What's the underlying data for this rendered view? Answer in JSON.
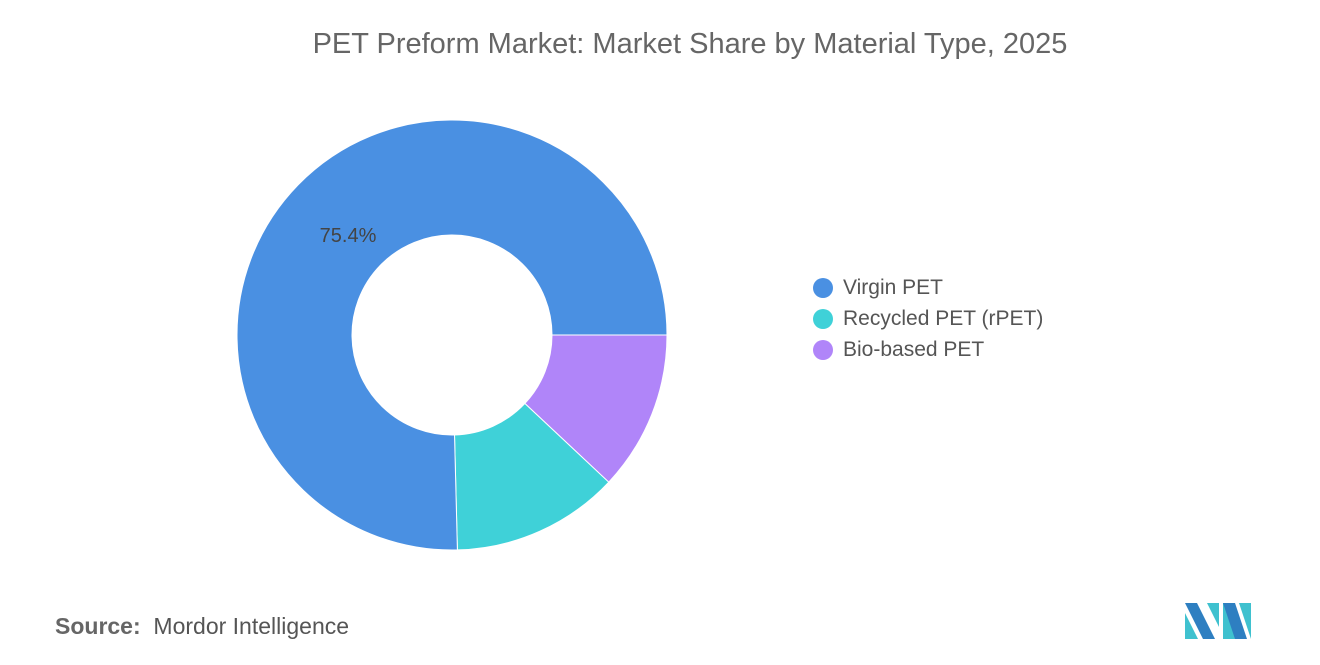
{
  "chart_data": {
    "type": "pie",
    "variant": "donut",
    "title": "PET Preform Market: Market Share by Material Type, 2025",
    "series": [
      {
        "name": "Virgin PET",
        "value": 75.4,
        "color": "#4a90e2",
        "label": "75.4%"
      },
      {
        "name": "Recycled PET (rPET)",
        "value": 12.6,
        "color": "#3fd1d8"
      },
      {
        "name": "Bio-based PET",
        "value": 12.0,
        "color": "#b085f9"
      }
    ],
    "legend_position": "right"
  },
  "source": {
    "label": "Source:",
    "value": "Mordor Intelligence"
  },
  "logo": {
    "name": "mordor-intelligence-logo"
  }
}
